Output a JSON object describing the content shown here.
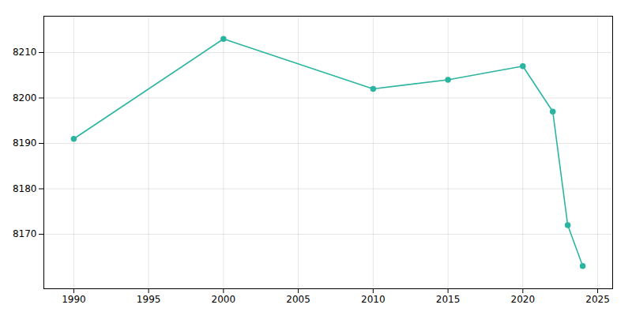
{
  "chart_data": {
    "type": "line",
    "x": [
      1990,
      2000,
      2010,
      2015,
      2020,
      2022,
      2023,
      2024
    ],
    "values": [
      8191,
      8213,
      8202,
      8204,
      8207,
      8197,
      8172,
      8163
    ],
    "color": "#2bb5a0",
    "marker": "circle",
    "xlim": [
      1988,
      2026
    ],
    "ylim": [
      8158,
      8218
    ],
    "xticks": [
      1990,
      1995,
      2000,
      2005,
      2010,
      2015,
      2020,
      2025
    ],
    "yticks": [
      8170,
      8180,
      8190,
      8200,
      8210
    ],
    "grid": true
  }
}
